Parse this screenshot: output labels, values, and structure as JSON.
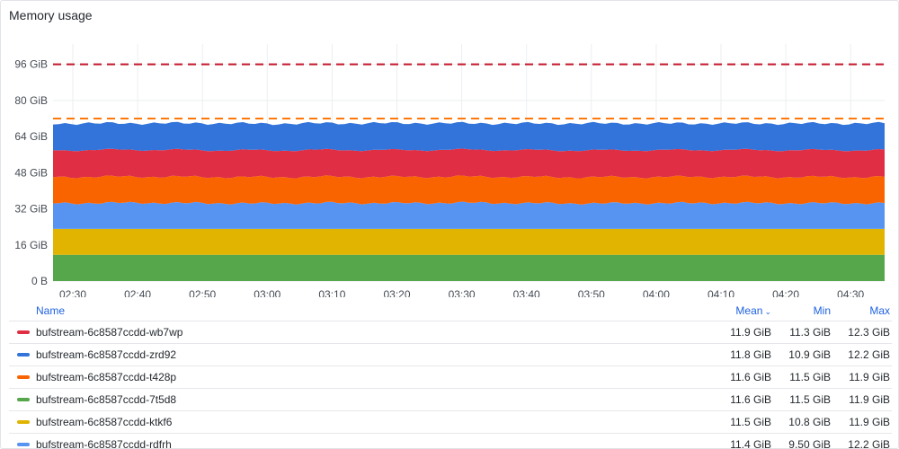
{
  "panel": {
    "title": "Memory usage"
  },
  "colors": {
    "wb7wp": "#e02f44",
    "zrd92": "#3274d9",
    "t428p": "#fa6400",
    "7t5d8": "#56a64b",
    "ktkf6": "#e0b400",
    "rdfrh": "#5794f2",
    "threshold_red": "#c4162a",
    "threshold_orange": "#ff780a"
  },
  "chart_data": {
    "type": "area",
    "stacked": true,
    "title": "Memory usage",
    "x": [
      "02:30",
      "02:40",
      "02:50",
      "03:00",
      "03:10",
      "03:20",
      "03:30",
      "03:40",
      "03:50",
      "04:00",
      "04:10",
      "04:20",
      "04:30"
    ],
    "y_ticks": [
      "0 B",
      "16 GiB",
      "32 GiB",
      "48 GiB",
      "64 GiB",
      "80 GiB",
      "96 GiB"
    ],
    "ylim": [
      0,
      105
    ],
    "y_unit": "GiB",
    "series": [
      {
        "name": "bufstream-6c8587ccdd-7t5d8",
        "key": "7t5d8",
        "values": [
          11.6,
          11.6,
          11.6,
          11.6,
          11.6,
          11.6,
          11.6,
          11.6,
          11.6,
          11.6,
          11.6,
          11.6,
          11.6
        ]
      },
      {
        "name": "bufstream-6c8587ccdd-ktkf6",
        "key": "ktkf6",
        "values": [
          11.5,
          11.5,
          11.5,
          11.5,
          11.5,
          11.5,
          11.5,
          11.5,
          11.5,
          11.5,
          11.5,
          11.5,
          11.5
        ]
      },
      {
        "name": "bufstream-6c8587ccdd-rdfrh",
        "key": "rdfrh",
        "values": [
          11.4,
          11.6,
          11.4,
          11.3,
          11.5,
          11.4,
          11.6,
          11.4,
          11.3,
          11.4,
          11.5,
          11.4,
          11.4
        ]
      },
      {
        "name": "bufstream-6c8587ccdd-t428p",
        "key": "t428p",
        "values": [
          11.6,
          11.6,
          11.6,
          11.6,
          11.6,
          11.6,
          11.6,
          11.6,
          11.6,
          11.6,
          11.6,
          11.6,
          11.6
        ]
      },
      {
        "name": "bufstream-6c8587ccdd-wb7wp",
        "key": "wb7wp",
        "values": [
          11.9,
          11.9,
          11.9,
          11.9,
          11.9,
          11.9,
          11.9,
          11.9,
          11.9,
          11.9,
          11.9,
          11.9,
          11.9
        ]
      },
      {
        "name": "bufstream-6c8587ccdd-zrd92",
        "key": "zrd92",
        "values": [
          11.8,
          11.7,
          11.9,
          11.8,
          11.8,
          11.9,
          11.7,
          11.8,
          11.9,
          11.8,
          11.7,
          11.8,
          11.8
        ]
      }
    ],
    "thresholds": [
      {
        "value": 96,
        "color": "threshold_red",
        "style": "dashed"
      },
      {
        "value": 72,
        "color": "threshold_orange",
        "style": "dashed"
      }
    ],
    "grid": true,
    "legend": "bottom-table"
  },
  "legend": {
    "headers": {
      "name": "Name",
      "mean": "Mean",
      "min": "Min",
      "max": "Max"
    },
    "rows": [
      {
        "name": "bufstream-6c8587ccdd-wb7wp",
        "key": "wb7wp",
        "mean": "11.9 GiB",
        "min": "11.3 GiB",
        "max": "12.3 GiB"
      },
      {
        "name": "bufstream-6c8587ccdd-zrd92",
        "key": "zrd92",
        "mean": "11.8 GiB",
        "min": "10.9 GiB",
        "max": "12.2 GiB"
      },
      {
        "name": "bufstream-6c8587ccdd-t428p",
        "key": "t428p",
        "mean": "11.6 GiB",
        "min": "11.5 GiB",
        "max": "11.9 GiB"
      },
      {
        "name": "bufstream-6c8587ccdd-7t5d8",
        "key": "7t5d8",
        "mean": "11.6 GiB",
        "min": "11.5 GiB",
        "max": "11.9 GiB"
      },
      {
        "name": "bufstream-6c8587ccdd-ktkf6",
        "key": "ktkf6",
        "mean": "11.5 GiB",
        "min": "10.8 GiB",
        "max": "11.9 GiB"
      },
      {
        "name": "bufstream-6c8587ccdd-rdfrh",
        "key": "rdfrh",
        "mean": "11.4 GiB",
        "min": "9.50 GiB",
        "max": "12.2 GiB"
      }
    ]
  }
}
